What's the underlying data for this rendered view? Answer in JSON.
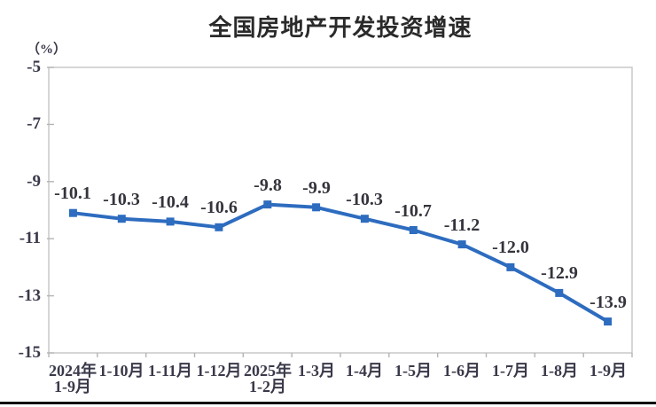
{
  "chart_data": {
    "type": "line",
    "title": "全国房地产开发投资增速",
    "unit_label": "（%）",
    "categories": [
      "2024年\n1-9月",
      "1-10月",
      "1-11月",
      "1-12月",
      "2025年\n1-2月",
      "1-3月",
      "1-4月",
      "1-5月",
      "1-6月",
      "1-7月",
      "1-8月",
      "1-9月"
    ],
    "values": [
      -10.1,
      -10.3,
      -10.4,
      -10.6,
      -9.8,
      -9.9,
      -10.3,
      -10.7,
      -11.2,
      -12.0,
      -12.9,
      -13.9
    ],
    "data_labels": [
      "-10.1",
      "-10.3",
      "-10.4",
      "-10.6",
      "-9.8",
      "-9.9",
      "-10.3",
      "-10.7",
      "-11.2",
      "-12.0",
      "-12.9",
      "-13.9"
    ],
    "yticks": [
      -5,
      -7,
      -9,
      -11,
      -13,
      -15
    ],
    "ylim": [
      -15,
      -5
    ],
    "xlabel": "",
    "ylabel": "",
    "grid": false,
    "legend": "none",
    "line_color": "#2d6cbf",
    "marker": "square",
    "axis_line_color": "#c4c4c4",
    "tick_color": "#b5b5b5",
    "title_color": "#2a2a2a",
    "label_text_color": "#34343c",
    "axis_text_color": "#39394a"
  }
}
